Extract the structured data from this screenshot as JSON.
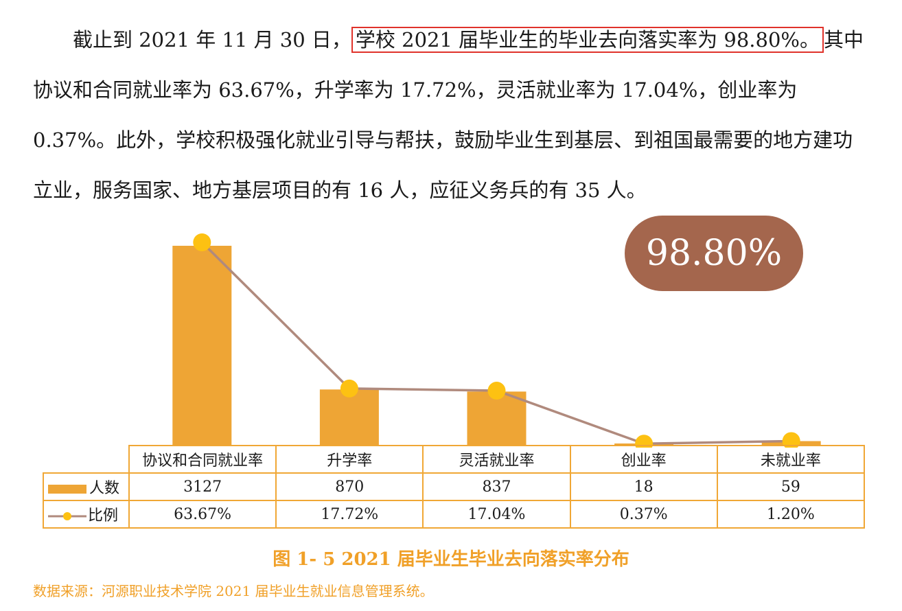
{
  "paragraph": {
    "part1": "截止到 2021 年 11 月 30 日，",
    "highlight": "学校 2021 届毕业生的毕业去向落实率为 98.80%。",
    "part2": "其中协议和合同就业率为 63.67%，升学率为 17.72%，灵活就业率为 17.04%，创业率为 0.37%。此外，学校积极强化就业引导与帮扶，鼓励毕业生到基层、到祖国最需要的地方建功立业，服务国家、地方基层项目的有 16 人，应征义务兵的有 35 人。"
  },
  "badge": "98.80%",
  "chart_data": {
    "type": "bar",
    "categories": [
      "协议和合同就业率",
      "升学率",
      "灵活就业率",
      "创业率",
      "未就业率"
    ],
    "series": [
      {
        "name": "人数",
        "kind": "bar",
        "values": [
          3127,
          870,
          837,
          18,
          59
        ],
        "labels": [
          "3127",
          "870",
          "837",
          "18",
          "59"
        ],
        "color": "#eea535"
      },
      {
        "name": "比例",
        "kind": "line",
        "values": [
          63.67,
          17.72,
          17.04,
          0.37,
          1.2
        ],
        "labels": [
          "63.67%",
          "17.72%",
          "17.04%",
          "0.37%",
          "1.20%"
        ],
        "color": "#b08a7d",
        "marker_color": "#fdc112"
      }
    ],
    "legend": "data-table"
  },
  "caption": "图 1- 5    2021 届毕业生毕业去向落实率分布",
  "source": "数据来源：河源职业技术学院 2021 届毕业生就业信息管理系统。"
}
